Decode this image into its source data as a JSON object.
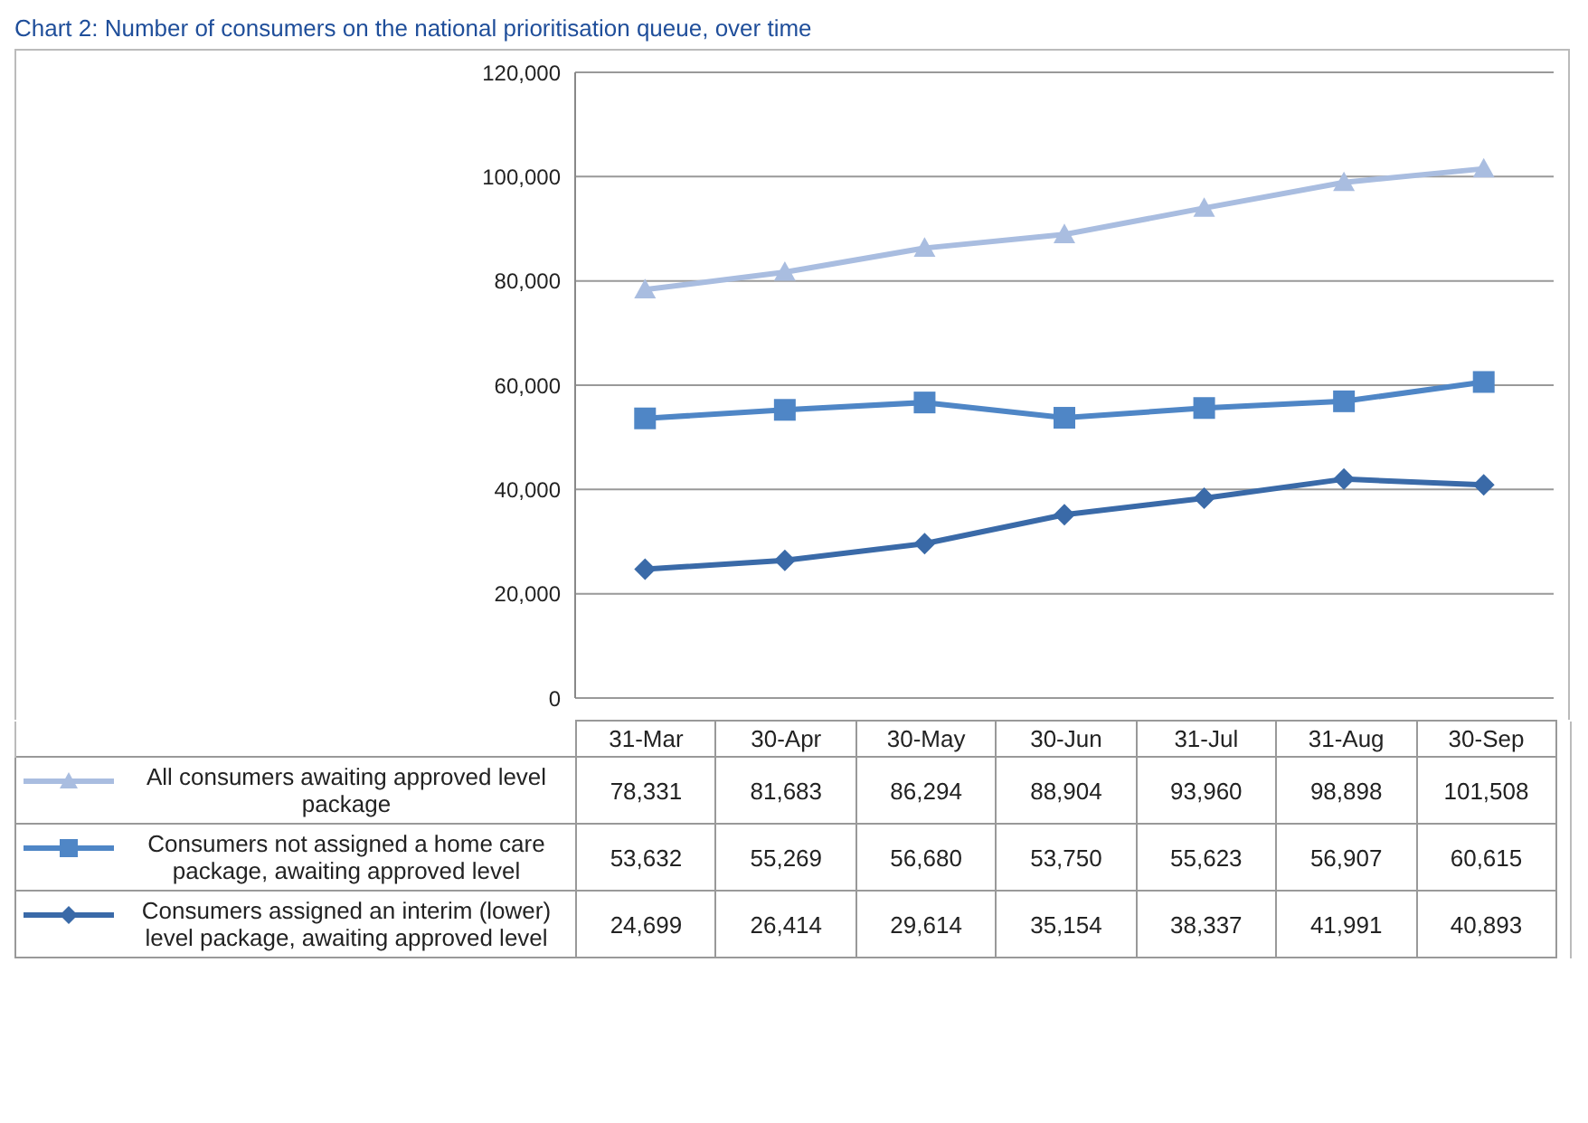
{
  "chart_data": {
    "type": "line",
    "title": "Chart 2: Number of consumers on the national prioritisation queue, over time",
    "categories": [
      "31-Mar",
      "30-Apr",
      "30-May",
      "30-Jun",
      "31-Jul",
      "31-Aug",
      "30-Sep"
    ],
    "series": [
      {
        "name": "All consumers awaiting approved level package",
        "color": "#a9bde0",
        "marker": "triangle",
        "values": [
          78331,
          81683,
          86294,
          88904,
          93960,
          98898,
          101508
        ],
        "value_labels": [
          "78,331",
          "81,683",
          "86,294",
          "88,904",
          "93,960",
          "98,898",
          "101,508"
        ]
      },
      {
        "name": "Consumers not assigned a home care package, awaiting approved level",
        "color": "#4f86c6",
        "marker": "square",
        "values": [
          53632,
          55269,
          56680,
          53750,
          55623,
          56907,
          60615
        ],
        "value_labels": [
          "53,632",
          "55,269",
          "56,680",
          "53,750",
          "55,623",
          "56,907",
          "60,615"
        ]
      },
      {
        "name": "Consumers assigned an interim (lower) level package, awaiting approved level",
        "color": "#3a6aa8",
        "marker": "diamond",
        "values": [
          24699,
          26414,
          29614,
          35154,
          38337,
          41991,
          40893
        ],
        "value_labels": [
          "24,699",
          "26,414",
          "29,614",
          "35,154",
          "38,337",
          "41,991",
          "40,893"
        ]
      }
    ],
    "ylim": [
      0,
      120000
    ],
    "yticks": [
      {
        "value": 0,
        "label": "0"
      },
      {
        "value": 20000,
        "label": "20,000"
      },
      {
        "value": 40000,
        "label": "40,000"
      },
      {
        "value": 60000,
        "label": "60,000"
      },
      {
        "value": 80000,
        "label": "80,000"
      },
      {
        "value": 100000,
        "label": "100,000"
      },
      {
        "value": 120000,
        "label": "120,000"
      }
    ],
    "grid": "y",
    "legend": "bottom",
    "line_style": "solid"
  }
}
